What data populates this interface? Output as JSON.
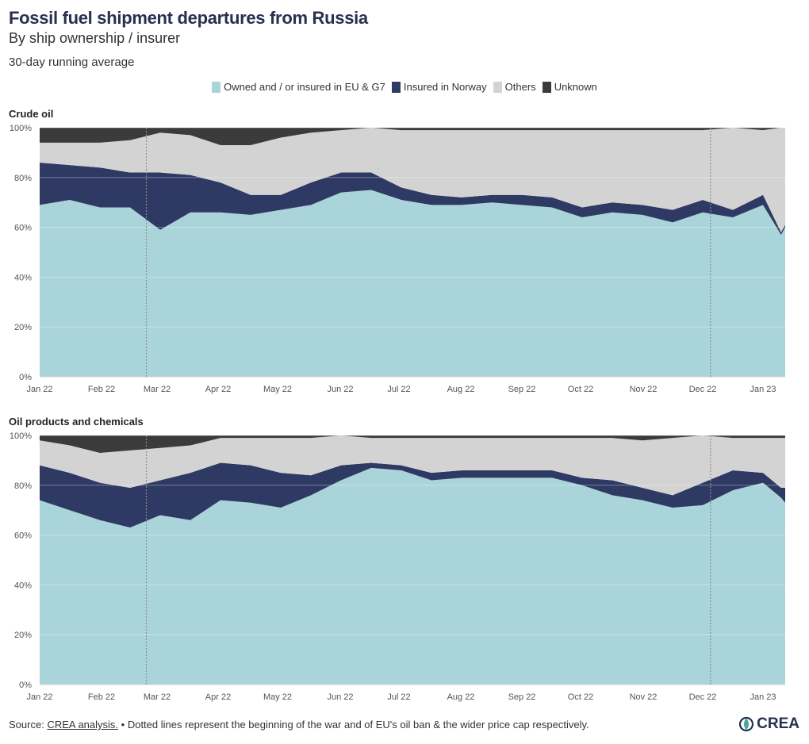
{
  "header": {
    "title": "Fossil fuel shipment departures from Russia",
    "subtitle": "By ship ownership / insurer",
    "note": "30-day running average"
  },
  "legend": [
    {
      "label": "Owned and / or insured in EU & G7",
      "color": "#a9d4d9"
    },
    {
      "label": "Insured in Norway",
      "color": "#2f3a64"
    },
    {
      "label": "Others",
      "color": "#d3d3d3"
    },
    {
      "label": "Unknown",
      "color": "#3b3b3b"
    }
  ],
  "footer": {
    "source_label": "Source:",
    "source_link": "CREA analysis.",
    "note": "• Dotted lines represent the beginning of the war and of EU's oil ban & the wider price cap respectively.",
    "logo": "CREA"
  },
  "chart_data": [
    {
      "type": "area",
      "stacked": true,
      "title": "Crude oil",
      "x_labels": [
        "Jan 22",
        "Feb 22",
        "Mar 22",
        "Apr 22",
        "May 22",
        "Jun 22",
        "Jul 22",
        "Aug 22",
        "Sep 22",
        "Oct 22",
        "Nov 22",
        "Dec 22",
        "Jan 23"
      ],
      "y_ticks": [
        "0%",
        "20%",
        "40%",
        "60%",
        "80%",
        "100%"
      ],
      "ylim": [
        0,
        100
      ],
      "markers": [
        "Feb 24 2022",
        "Dec 5 2022"
      ],
      "x_months": [
        0,
        0.5,
        1,
        1.5,
        2,
        2.5,
        3,
        3.5,
        4,
        4.5,
        5,
        5.5,
        6,
        6.5,
        7,
        7.5,
        8,
        8.5,
        9,
        9.5,
        10,
        10.5,
        11,
        11.5,
        12,
        12.3,
        12.6
      ],
      "series": [
        {
          "name": "Owned and / or insured in EU & G7",
          "values": [
            69,
            71,
            68,
            68,
            59,
            66,
            66,
            65,
            67,
            69,
            74,
            75,
            71,
            69,
            69,
            70,
            69,
            68,
            64,
            66,
            65,
            62,
            66,
            64,
            69,
            57,
            60
          ]
        },
        {
          "name": "Insured in Norway",
          "values": [
            17,
            14,
            16,
            14,
            23,
            15,
            12,
            8,
            6,
            9,
            8,
            7,
            5,
            4,
            3,
            3,
            4,
            4,
            4,
            4,
            4,
            5,
            5,
            3,
            4,
            1,
            1
          ]
        },
        {
          "name": "Others",
          "values": [
            8,
            9,
            10,
            13,
            16,
            16,
            15,
            20,
            23,
            20,
            17,
            18,
            23,
            26,
            27,
            26,
            26,
            27,
            31,
            29,
            30,
            32,
            28,
            33,
            26,
            42,
            39
          ]
        },
        {
          "name": "Unknown",
          "values": [
            6,
            6,
            6,
            5,
            2,
            3,
            7,
            7,
            4,
            2,
            1,
            0,
            1,
            1,
            1,
            1,
            1,
            1,
            1,
            1,
            1,
            1,
            1,
            0,
            1,
            0,
            0
          ]
        }
      ]
    },
    {
      "type": "area",
      "stacked": true,
      "title": "Oil products and chemicals",
      "x_labels": [
        "Jan 22",
        "Feb 22",
        "Mar 22",
        "Apr 22",
        "May 22",
        "Jun 22",
        "Jul 22",
        "Aug 22",
        "Sep 22",
        "Oct 22",
        "Nov 22",
        "Dec 22",
        "Jan 23"
      ],
      "y_ticks": [
        "0%",
        "20%",
        "40%",
        "60%",
        "80%",
        "100%"
      ],
      "ylim": [
        0,
        100
      ],
      "markers": [
        "Feb 24 2022",
        "Dec 5 2022"
      ],
      "x_months": [
        0,
        0.5,
        1,
        1.5,
        2,
        2.5,
        3,
        3.5,
        4,
        4.5,
        5,
        5.5,
        6,
        6.5,
        7,
        7.5,
        8,
        8.5,
        9,
        9.5,
        10,
        10.5,
        11,
        11.5,
        12,
        12.3,
        12.6
      ],
      "series": [
        {
          "name": "Owned and / or insured in EU & G7",
          "values": [
            74,
            70,
            66,
            63,
            68,
            66,
            74,
            73,
            71,
            76,
            82,
            87,
            86,
            82,
            83,
            83,
            83,
            83,
            80,
            76,
            74,
            71,
            72,
            78,
            81,
            75,
            73
          ]
        },
        {
          "name": "Insured in Norway",
          "values": [
            14,
            15,
            15,
            16,
            14,
            19,
            15,
            15,
            14,
            8,
            6,
            2,
            2,
            3,
            3,
            3,
            3,
            3,
            3,
            6,
            5,
            5,
            9,
            8,
            4,
            4,
            6
          ]
        },
        {
          "name": "Others",
          "values": [
            10,
            11,
            12,
            15,
            13,
            11,
            10,
            11,
            14,
            15,
            12,
            10,
            11,
            14,
            13,
            13,
            13,
            13,
            16,
            17,
            19,
            23,
            19,
            13,
            14,
            20,
            20
          ]
        },
        {
          "name": "Unknown",
          "values": [
            2,
            4,
            7,
            6,
            5,
            4,
            1,
            1,
            1,
            1,
            0,
            1,
            1,
            1,
            1,
            1,
            1,
            1,
            1,
            1,
            2,
            1,
            0,
            1,
            1,
            1,
            1
          ]
        }
      ]
    }
  ]
}
